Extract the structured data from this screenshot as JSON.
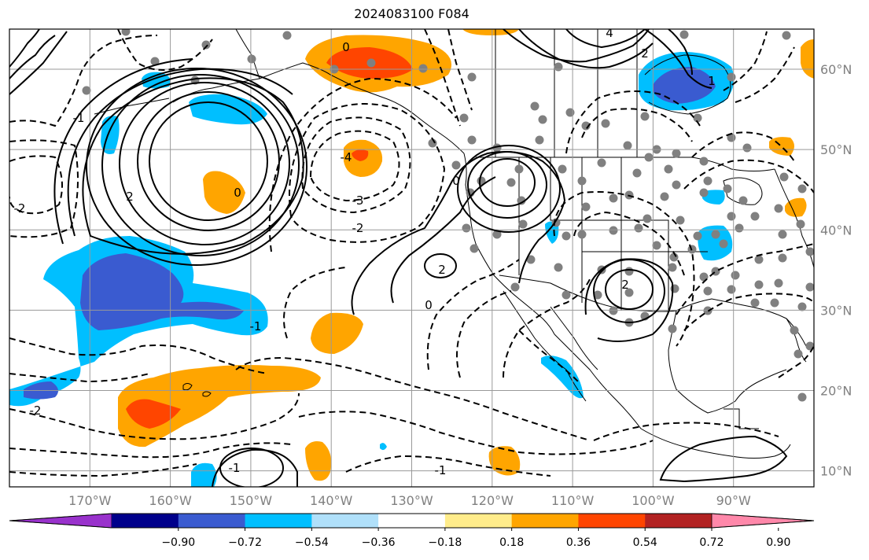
{
  "title": "2024083100 F084",
  "map": {
    "lon_range": [
      -180,
      -80
    ],
    "lat_range": [
      8,
      65
    ],
    "grid_lons": [
      -170,
      -160,
      -150,
      -140,
      -130,
      -120,
      -110,
      -100,
      -90
    ],
    "grid_lats": [
      10,
      20,
      30,
      40,
      50,
      60
    ],
    "lon_labels": [
      "170°W",
      "160°W",
      "150°W",
      "140°W",
      "130°W",
      "120°W",
      "110°W",
      "100°W",
      "90°W"
    ],
    "lat_labels": [
      "10°N",
      "20°N",
      "30°N",
      "40°N",
      "50°N",
      "60°N"
    ]
  },
  "colorbar": {
    "colors": [
      "#9932cc",
      "#00008b",
      "#3a5bd0",
      "#00bfff",
      "#b0e0fa",
      "#ffffff",
      "#ffec8b",
      "#ffa500",
      "#ff4500",
      "#b22222",
      "#ff88aa"
    ],
    "tick_labels": [
      "−0.90",
      "−0.72",
      "−0.54",
      "−0.36",
      "−0.18",
      "0.18",
      "0.36",
      "0.54",
      "0.72",
      "0.90"
    ]
  },
  "contour_labels": [
    "0",
    "-4",
    "-3",
    "-2",
    "-1",
    "2",
    "0",
    "-1",
    "0",
    "2",
    "-2",
    "0",
    "-1",
    "4",
    "2",
    "1",
    "-1",
    "-2",
    "2"
  ],
  "colors": {
    "positive_fill": "#ffa500",
    "positive_core": "#ff4500",
    "negative_fill": "#00bfff",
    "negative_core": "#3a5bd0",
    "land_dot": "#808080"
  }
}
